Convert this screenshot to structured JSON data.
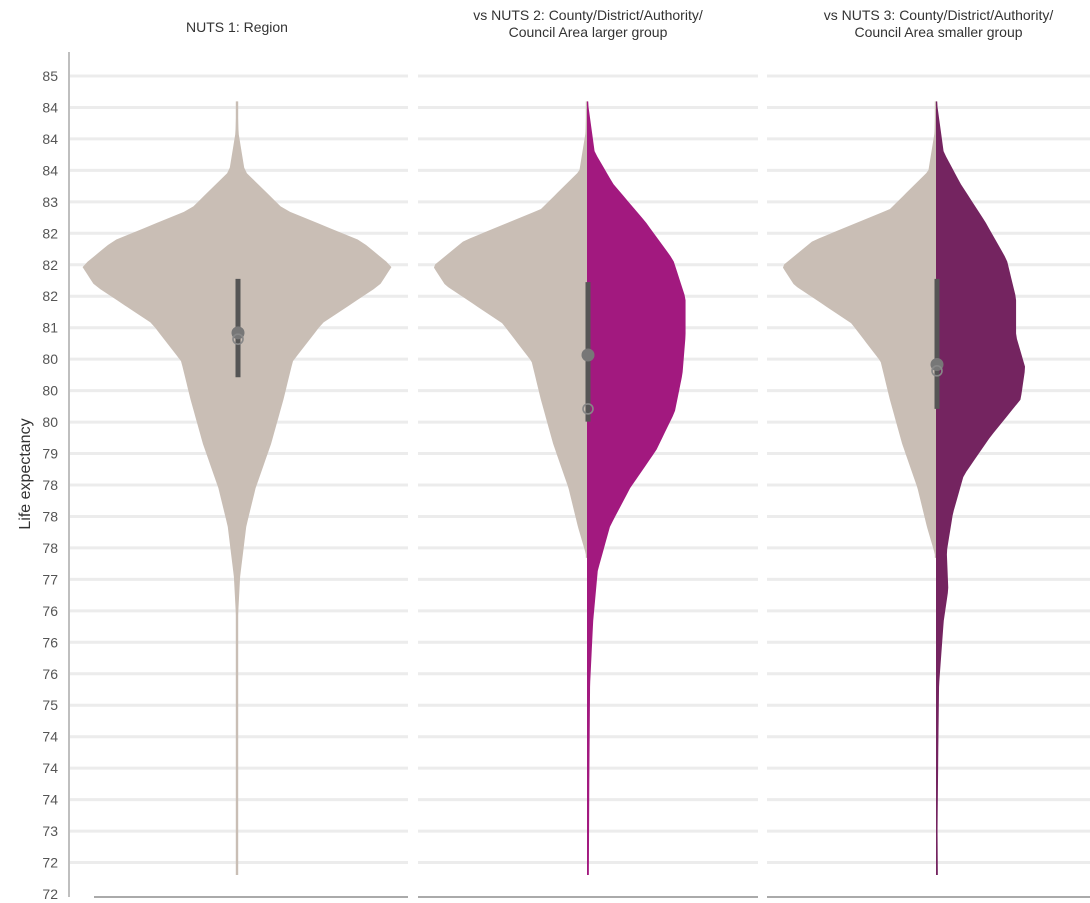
{
  "chart_data": {
    "type": "violin",
    "ylabel": "Life expectancy",
    "ylim": [
      72.2,
      85.1
    ],
    "y_ticks": [
      "85",
      "84",
      "84",
      "84",
      "83",
      "82",
      "82",
      "82",
      "81",
      "80",
      "80",
      "80",
      "79",
      "78",
      "78",
      "78",
      "77",
      "76",
      "76",
      "76",
      "75",
      "74",
      "74",
      "74",
      "73",
      "72",
      "72"
    ],
    "grid": true,
    "panels": [
      {
        "title_lines": [
          "NUTS 1: Region"
        ],
        "left": {
          "color": "#c9beb5",
          "ymin": 72.5,
          "ymax": 84.7,
          "profile": [
            [
              72.5,
              0.005
            ],
            [
              76.5,
              0.005
            ],
            [
              77.2,
              0.02
            ],
            [
              78.0,
              0.06
            ],
            [
              78.6,
              0.12
            ],
            [
              79.3,
              0.22
            ],
            [
              80.0,
              0.3
            ],
            [
              80.6,
              0.36
            ],
            [
              81.2,
              0.55
            ],
            [
              81.8,
              0.92
            ],
            [
              82.1,
              1.0
            ],
            [
              82.5,
              0.8
            ],
            [
              83.0,
              0.3
            ],
            [
              83.6,
              0.05
            ],
            [
              84.2,
              0.01
            ],
            [
              84.7,
              0.005
            ]
          ]
        },
        "right": {
          "color": "#c9beb5",
          "ymin": 72.5,
          "ymax": 84.7,
          "profile": [
            [
              72.5,
              0.005
            ],
            [
              76.5,
              0.005
            ],
            [
              77.2,
              0.02
            ],
            [
              78.0,
              0.06
            ],
            [
              78.6,
              0.12
            ],
            [
              79.3,
              0.22
            ],
            [
              80.0,
              0.3
            ],
            [
              80.6,
              0.36
            ],
            [
              81.2,
              0.55
            ],
            [
              81.8,
              0.92
            ],
            [
              82.1,
              1.0
            ],
            [
              82.5,
              0.8
            ],
            [
              83.0,
              0.3
            ],
            [
              83.6,
              0.05
            ],
            [
              84.2,
              0.01
            ],
            [
              84.7,
              0.005
            ]
          ]
        },
        "whisker_low": 80.35,
        "whisker_high": 81.9,
        "points": [
          {
            "y": 81.05,
            "filled": true
          },
          {
            "y": 80.95,
            "filled": false
          }
        ]
      },
      {
        "title_lines": [
          "vs NUTS 2: County/District/Authority/",
          "Council Area larger group"
        ],
        "left": {
          "color": "#c9beb5",
          "ymin": 77.5,
          "ymax": 84.7,
          "profile": [
            [
              77.5,
              0.0
            ],
            [
              78.0,
              0.06
            ],
            [
              78.6,
              0.12
            ],
            [
              79.3,
              0.22
            ],
            [
              80.0,
              0.3
            ],
            [
              80.6,
              0.36
            ],
            [
              81.2,
              0.55
            ],
            [
              81.8,
              0.92
            ],
            [
              82.1,
              1.0
            ],
            [
              82.5,
              0.8
            ],
            [
              83.0,
              0.3
            ],
            [
              83.6,
              0.05
            ],
            [
              84.2,
              0.01
            ],
            [
              84.7,
              0.005
            ]
          ]
        },
        "right": {
          "color": "#a2197f",
          "ymin": 72.5,
          "ymax": 84.7,
          "profile": [
            [
              72.5,
              0.012
            ],
            [
              74.0,
              0.015
            ],
            [
              75.5,
              0.02
            ],
            [
              76.5,
              0.04
            ],
            [
              77.3,
              0.07
            ],
            [
              78.0,
              0.15
            ],
            [
              78.6,
              0.28
            ],
            [
              79.2,
              0.45
            ],
            [
              79.8,
              0.57
            ],
            [
              80.4,
              0.62
            ],
            [
              81.0,
              0.64
            ],
            [
              81.6,
              0.64
            ],
            [
              82.2,
              0.56
            ],
            [
              82.8,
              0.38
            ],
            [
              83.4,
              0.17
            ],
            [
              83.9,
              0.05
            ],
            [
              84.7,
              0.005
            ]
          ]
        },
        "whisker_low": 79.65,
        "whisker_high": 81.85,
        "points": [
          {
            "y": 80.7,
            "filled": true
          },
          {
            "y": 79.85,
            "filled": false
          }
        ]
      },
      {
        "title_lines": [
          "vs NUTS 3: County/District/Authority/",
          "Council Area smaller group"
        ],
        "left": {
          "color": "#c9beb5",
          "ymin": 77.5,
          "ymax": 84.7,
          "profile": [
            [
              77.5,
              0.0
            ],
            [
              78.0,
              0.06
            ],
            [
              78.6,
              0.12
            ],
            [
              79.3,
              0.22
            ],
            [
              80.0,
              0.3
            ],
            [
              80.6,
              0.36
            ],
            [
              81.2,
              0.55
            ],
            [
              81.8,
              0.92
            ],
            [
              82.1,
              1.0
            ],
            [
              82.5,
              0.8
            ],
            [
              83.0,
              0.3
            ],
            [
              83.6,
              0.05
            ],
            [
              84.2,
              0.01
            ],
            [
              84.7,
              0.005
            ]
          ]
        },
        "right": {
          "color": "#742460",
          "ymin": 72.5,
          "ymax": 84.7,
          "profile": [
            [
              72.5,
              0.012
            ],
            [
              73.2,
              0.01
            ],
            [
              74.5,
              0.015
            ],
            [
              75.5,
              0.02
            ],
            [
              76.5,
              0.05
            ],
            [
              77.0,
              0.08
            ],
            [
              77.6,
              0.07
            ],
            [
              78.2,
              0.11
            ],
            [
              78.8,
              0.18
            ],
            [
              79.4,
              0.35
            ],
            [
              80.0,
              0.55
            ],
            [
              80.5,
              0.58
            ],
            [
              81.0,
              0.52
            ],
            [
              81.6,
              0.52
            ],
            [
              82.2,
              0.46
            ],
            [
              82.8,
              0.32
            ],
            [
              83.4,
              0.16
            ],
            [
              83.9,
              0.05
            ],
            [
              84.7,
              0.005
            ]
          ]
        },
        "whisker_low": 79.85,
        "whisker_high": 81.9,
        "points": [
          {
            "y": 80.55,
            "filled": true
          },
          {
            "y": 80.45,
            "filled": false
          }
        ]
      }
    ]
  }
}
